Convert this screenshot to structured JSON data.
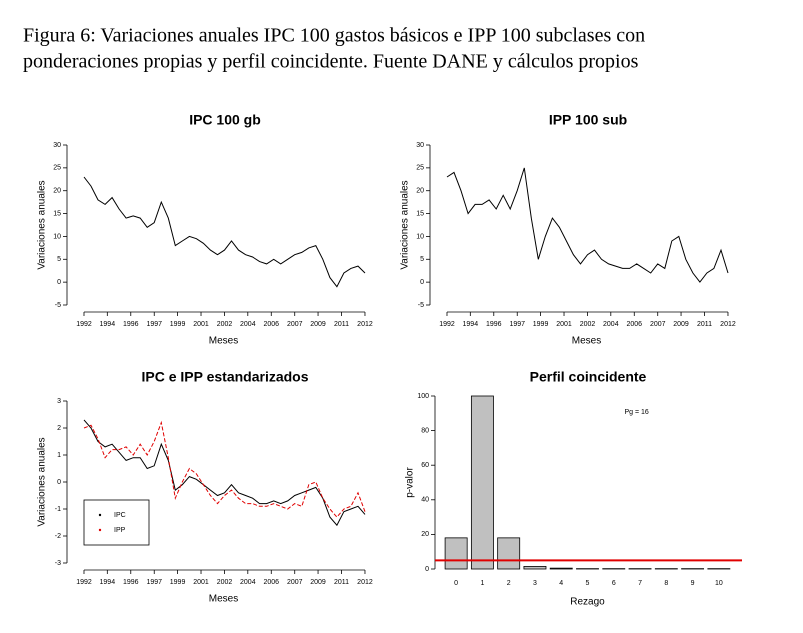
{
  "caption": [
    "Figura 6: Variaciones anuales IPC 100 gastos básicos e IPP 100 subclases con",
    "ponderaciones propias y perfil coincidente. Fuente DANE y cálculos propios"
  ],
  "chart_data": [
    {
      "type": "line",
      "title": "IPC 100 gb",
      "xlabel": "Meses",
      "ylabel": "Variaciones anuales",
      "color": "#000000",
      "x": [
        1992.92,
        1993.42,
        1993.92,
        1994.42,
        1994.92,
        1995.42,
        1995.92,
        1996.42,
        1996.92,
        1997.42,
        1997.92,
        1998.42,
        1998.92,
        1999.42,
        1999.92,
        2000.42,
        2000.92,
        2001.42,
        2001.92,
        2002.42,
        2002.92,
        2003.42,
        2003.92,
        2004.42,
        2004.92,
        2005.42,
        2005.92,
        2006.42,
        2006.92,
        2007.42,
        2007.92,
        2008.42,
        2008.92,
        2009.42,
        2009.92,
        2010.42,
        2010.92,
        2011.42,
        2011.92,
        2012.42,
        2012.92
      ],
      "values": [
        23,
        21,
        18,
        17,
        18.5,
        16,
        14,
        14.5,
        14,
        12,
        13,
        17.5,
        14,
        8,
        9,
        10,
        9.5,
        8.5,
        7,
        6,
        7,
        9,
        7,
        6,
        5.5,
        4.5,
        4,
        5,
        4,
        5,
        6,
        6.5,
        7.5,
        8,
        5,
        1,
        -1,
        2,
        3,
        3.5,
        2
      ],
      "xlim": [
        1992.28,
        2013.42
      ],
      "xticks": [
        {
          "value": 1992.92,
          "label": "1992"
        },
        {
          "value": 1994.58,
          "label": "1994"
        },
        {
          "value": 1996.25,
          "label": "1996"
        },
        {
          "value": 1997.92,
          "label": "1997"
        },
        {
          "value": 1999.58,
          "label": "1999"
        },
        {
          "value": 2001.25,
          "label": "2001"
        },
        {
          "value": 2002.92,
          "label": "2002"
        },
        {
          "value": 2004.58,
          "label": "2004"
        },
        {
          "value": 2006.25,
          "label": "2006"
        },
        {
          "value": 2007.92,
          "label": "2007"
        },
        {
          "value": 2009.58,
          "label": "2009"
        },
        {
          "value": 2011.25,
          "label": "2011"
        },
        {
          "value": 2012.92,
          "label": "2012"
        }
      ],
      "ylim": [
        -5,
        30
      ],
      "yticks": [
        -5,
        0,
        5,
        10,
        15,
        20,
        25,
        30
      ]
    },
    {
      "type": "line",
      "title": "IPP 100 sub",
      "xlabel": "Meses",
      "ylabel": "Variaciones anuales",
      "color": "#000000",
      "x": [
        1992.92,
        1993.42,
        1993.92,
        1994.42,
        1994.92,
        1995.42,
        1995.92,
        1996.42,
        1996.92,
        1997.42,
        1997.92,
        1998.42,
        1998.92,
        1999.42,
        1999.92,
        2000.42,
        2000.92,
        2001.42,
        2001.92,
        2002.42,
        2002.92,
        2003.42,
        2003.92,
        2004.42,
        2004.92,
        2005.42,
        2005.92,
        2006.42,
        2006.92,
        2007.42,
        2007.92,
        2008.42,
        2008.92,
        2009.42,
        2009.92,
        2010.42,
        2010.92,
        2011.42,
        2011.92,
        2012.42,
        2012.92
      ],
      "values": [
        23,
        24,
        20,
        15,
        17,
        17,
        18,
        16,
        19,
        16,
        20,
        25,
        14,
        5,
        10,
        14,
        12,
        9,
        6,
        4,
        6,
        7,
        5,
        4,
        3.5,
        3,
        3,
        4,
        3,
        2,
        4,
        3,
        9,
        10,
        5,
        2,
        0,
        2,
        3,
        7,
        2
      ],
      "xlim": [
        1992.28,
        2013.42
      ],
      "xticks": [
        {
          "value": 1992.92,
          "label": "1992"
        },
        {
          "value": 1994.58,
          "label": "1994"
        },
        {
          "value": 1996.25,
          "label": "1996"
        },
        {
          "value": 1997.92,
          "label": "1997"
        },
        {
          "value": 1999.58,
          "label": "1999"
        },
        {
          "value": 2001.25,
          "label": "2001"
        },
        {
          "value": 2002.92,
          "label": "2002"
        },
        {
          "value": 2004.58,
          "label": "2004"
        },
        {
          "value": 2006.25,
          "label": "2006"
        },
        {
          "value": 2007.92,
          "label": "2007"
        },
        {
          "value": 2009.58,
          "label": "2009"
        },
        {
          "value": 2011.25,
          "label": "2011"
        },
        {
          "value": 2012.92,
          "label": "2012"
        }
      ],
      "ylim": [
        -5,
        30
      ],
      "yticks": [
        -5,
        0,
        5,
        10,
        15,
        20,
        25,
        30
      ]
    },
    {
      "type": "line",
      "title": "IPC e IPP estandarizados",
      "xlabel": "Meses",
      "ylabel": "Variaciones anuales",
      "legend": "bottomleft",
      "x": [
        1992.92,
        1993.42,
        1993.92,
        1994.42,
        1994.92,
        1995.42,
        1995.92,
        1996.42,
        1996.92,
        1997.42,
        1997.92,
        1998.42,
        1998.92,
        1999.42,
        1999.92,
        2000.42,
        2000.92,
        2001.42,
        2001.92,
        2002.42,
        2002.92,
        2003.42,
        2003.92,
        2004.42,
        2004.92,
        2005.42,
        2005.92,
        2006.42,
        2006.92,
        2007.42,
        2007.92,
        2008.42,
        2008.92,
        2009.42,
        2009.92,
        2010.42,
        2010.92,
        2011.42,
        2011.92,
        2012.42,
        2012.92
      ],
      "series": [
        {
          "name": "IPC",
          "color": "#000000",
          "dash": false,
          "values": [
            2.3,
            2.0,
            1.5,
            1.3,
            1.4,
            1.1,
            0.8,
            0.9,
            0.9,
            0.5,
            0.6,
            1.4,
            0.8,
            -0.3,
            -0.1,
            0.2,
            0.1,
            -0.1,
            -0.3,
            -0.5,
            -0.4,
            -0.1,
            -0.4,
            -0.5,
            -0.6,
            -0.8,
            -0.8,
            -0.7,
            -0.8,
            -0.7,
            -0.5,
            -0.4,
            -0.3,
            -0.2,
            -0.6,
            -1.3,
            -1.6,
            -1.1,
            -1.0,
            -0.9,
            -1.2
          ]
        },
        {
          "name": "IPP",
          "color": "#e00000",
          "dash": true,
          "values": [
            2.0,
            2.1,
            1.6,
            0.9,
            1.2,
            1.2,
            1.3,
            1.0,
            1.4,
            1.0,
            1.5,
            2.2,
            0.9,
            -0.6,
            0.0,
            0.5,
            0.3,
            -0.1,
            -0.5,
            -0.8,
            -0.5,
            -0.3,
            -0.6,
            -0.8,
            -0.8,
            -0.9,
            -0.9,
            -0.8,
            -0.9,
            -1.0,
            -0.8,
            -0.9,
            -0.1,
            0.0,
            -0.6,
            -1.0,
            -1.3,
            -1.0,
            -0.9,
            -0.4,
            -1.1
          ]
        }
      ],
      "xlim": [
        1992.28,
        2013.42
      ],
      "xticks": [
        {
          "value": 1992.92,
          "label": "1992"
        },
        {
          "value": 1994.58,
          "label": "1994"
        },
        {
          "value": 1996.25,
          "label": "1996"
        },
        {
          "value": 1997.92,
          "label": "1997"
        },
        {
          "value": 1999.58,
          "label": "1999"
        },
        {
          "value": 2001.25,
          "label": "2001"
        },
        {
          "value": 2002.92,
          "label": "2002"
        },
        {
          "value": 2004.58,
          "label": "2004"
        },
        {
          "value": 2006.25,
          "label": "2006"
        },
        {
          "value": 2007.92,
          "label": "2007"
        },
        {
          "value": 2009.58,
          "label": "2009"
        },
        {
          "value": 2011.25,
          "label": "2011"
        },
        {
          "value": 2012.92,
          "label": "2012"
        }
      ],
      "ylim": [
        -3,
        3
      ],
      "yticks": [
        -3,
        -2,
        -1,
        0,
        1,
        2,
        3
      ]
    },
    {
      "type": "bar",
      "title": "Perfil coincidente",
      "xlabel": "Rezago",
      "ylabel": "p-valor",
      "annotation": "Pg = 16",
      "color": "#c0c0c0",
      "categories": [
        "0",
        "1",
        "2",
        "3",
        "4",
        "5",
        "6",
        "7",
        "8",
        "9",
        "10"
      ],
      "values": [
        18,
        100,
        18,
        1.5,
        0.5,
        0.2,
        0.2,
        0.2,
        0.2,
        0.2,
        0.2
      ],
      "reference_line": {
        "value": 5,
        "color": "#e00000"
      },
      "ylim": [
        0,
        100
      ],
      "yticks": [
        0,
        20,
        40,
        60,
        80,
        100
      ]
    }
  ]
}
